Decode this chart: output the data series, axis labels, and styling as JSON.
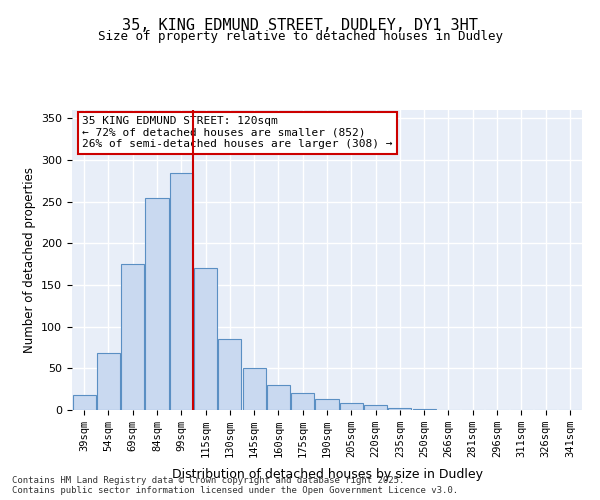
{
  "title_line1": "35, KING EDMUND STREET, DUDLEY, DY1 3HT",
  "title_line2": "Size of property relative to detached houses in Dudley",
  "xlabel": "Distribution of detached houses by size in Dudley",
  "ylabel": "Number of detached properties",
  "categories": [
    "39sqm",
    "54sqm",
    "69sqm",
    "84sqm",
    "99sqm",
    "115sqm",
    "130sqm",
    "145sqm",
    "160sqm",
    "175sqm",
    "190sqm",
    "205sqm",
    "220sqm",
    "235sqm",
    "250sqm",
    "266sqm",
    "281sqm",
    "296sqm",
    "311sqm",
    "326sqm",
    "341sqm"
  ],
  "bar_heights": [
    18,
    68,
    175,
    255,
    285,
    170,
    85,
    50,
    30,
    20,
    13,
    8,
    6,
    2,
    1,
    0,
    0,
    0,
    0,
    0,
    0
  ],
  "bar_color": "#c9d9f0",
  "bar_edge_color": "#5a8fc3",
  "vline_x": 5,
  "vline_color": "#cc0000",
  "annotation_text": "35 KING EDMUND STREET: 120sqm\n← 72% of detached houses are smaller (852)\n26% of semi-detached houses are larger (308) →",
  "annotation_box_color": "#ffffff",
  "annotation_box_edge": "#cc0000",
  "ylim": [
    0,
    360
  ],
  "yticks": [
    0,
    50,
    100,
    150,
    200,
    250,
    300,
    350
  ],
  "bg_color": "#e8eef8",
  "footer_line1": "Contains HM Land Registry data © Crown copyright and database right 2025.",
  "footer_line2": "Contains public sector information licensed under the Open Government Licence v3.0."
}
